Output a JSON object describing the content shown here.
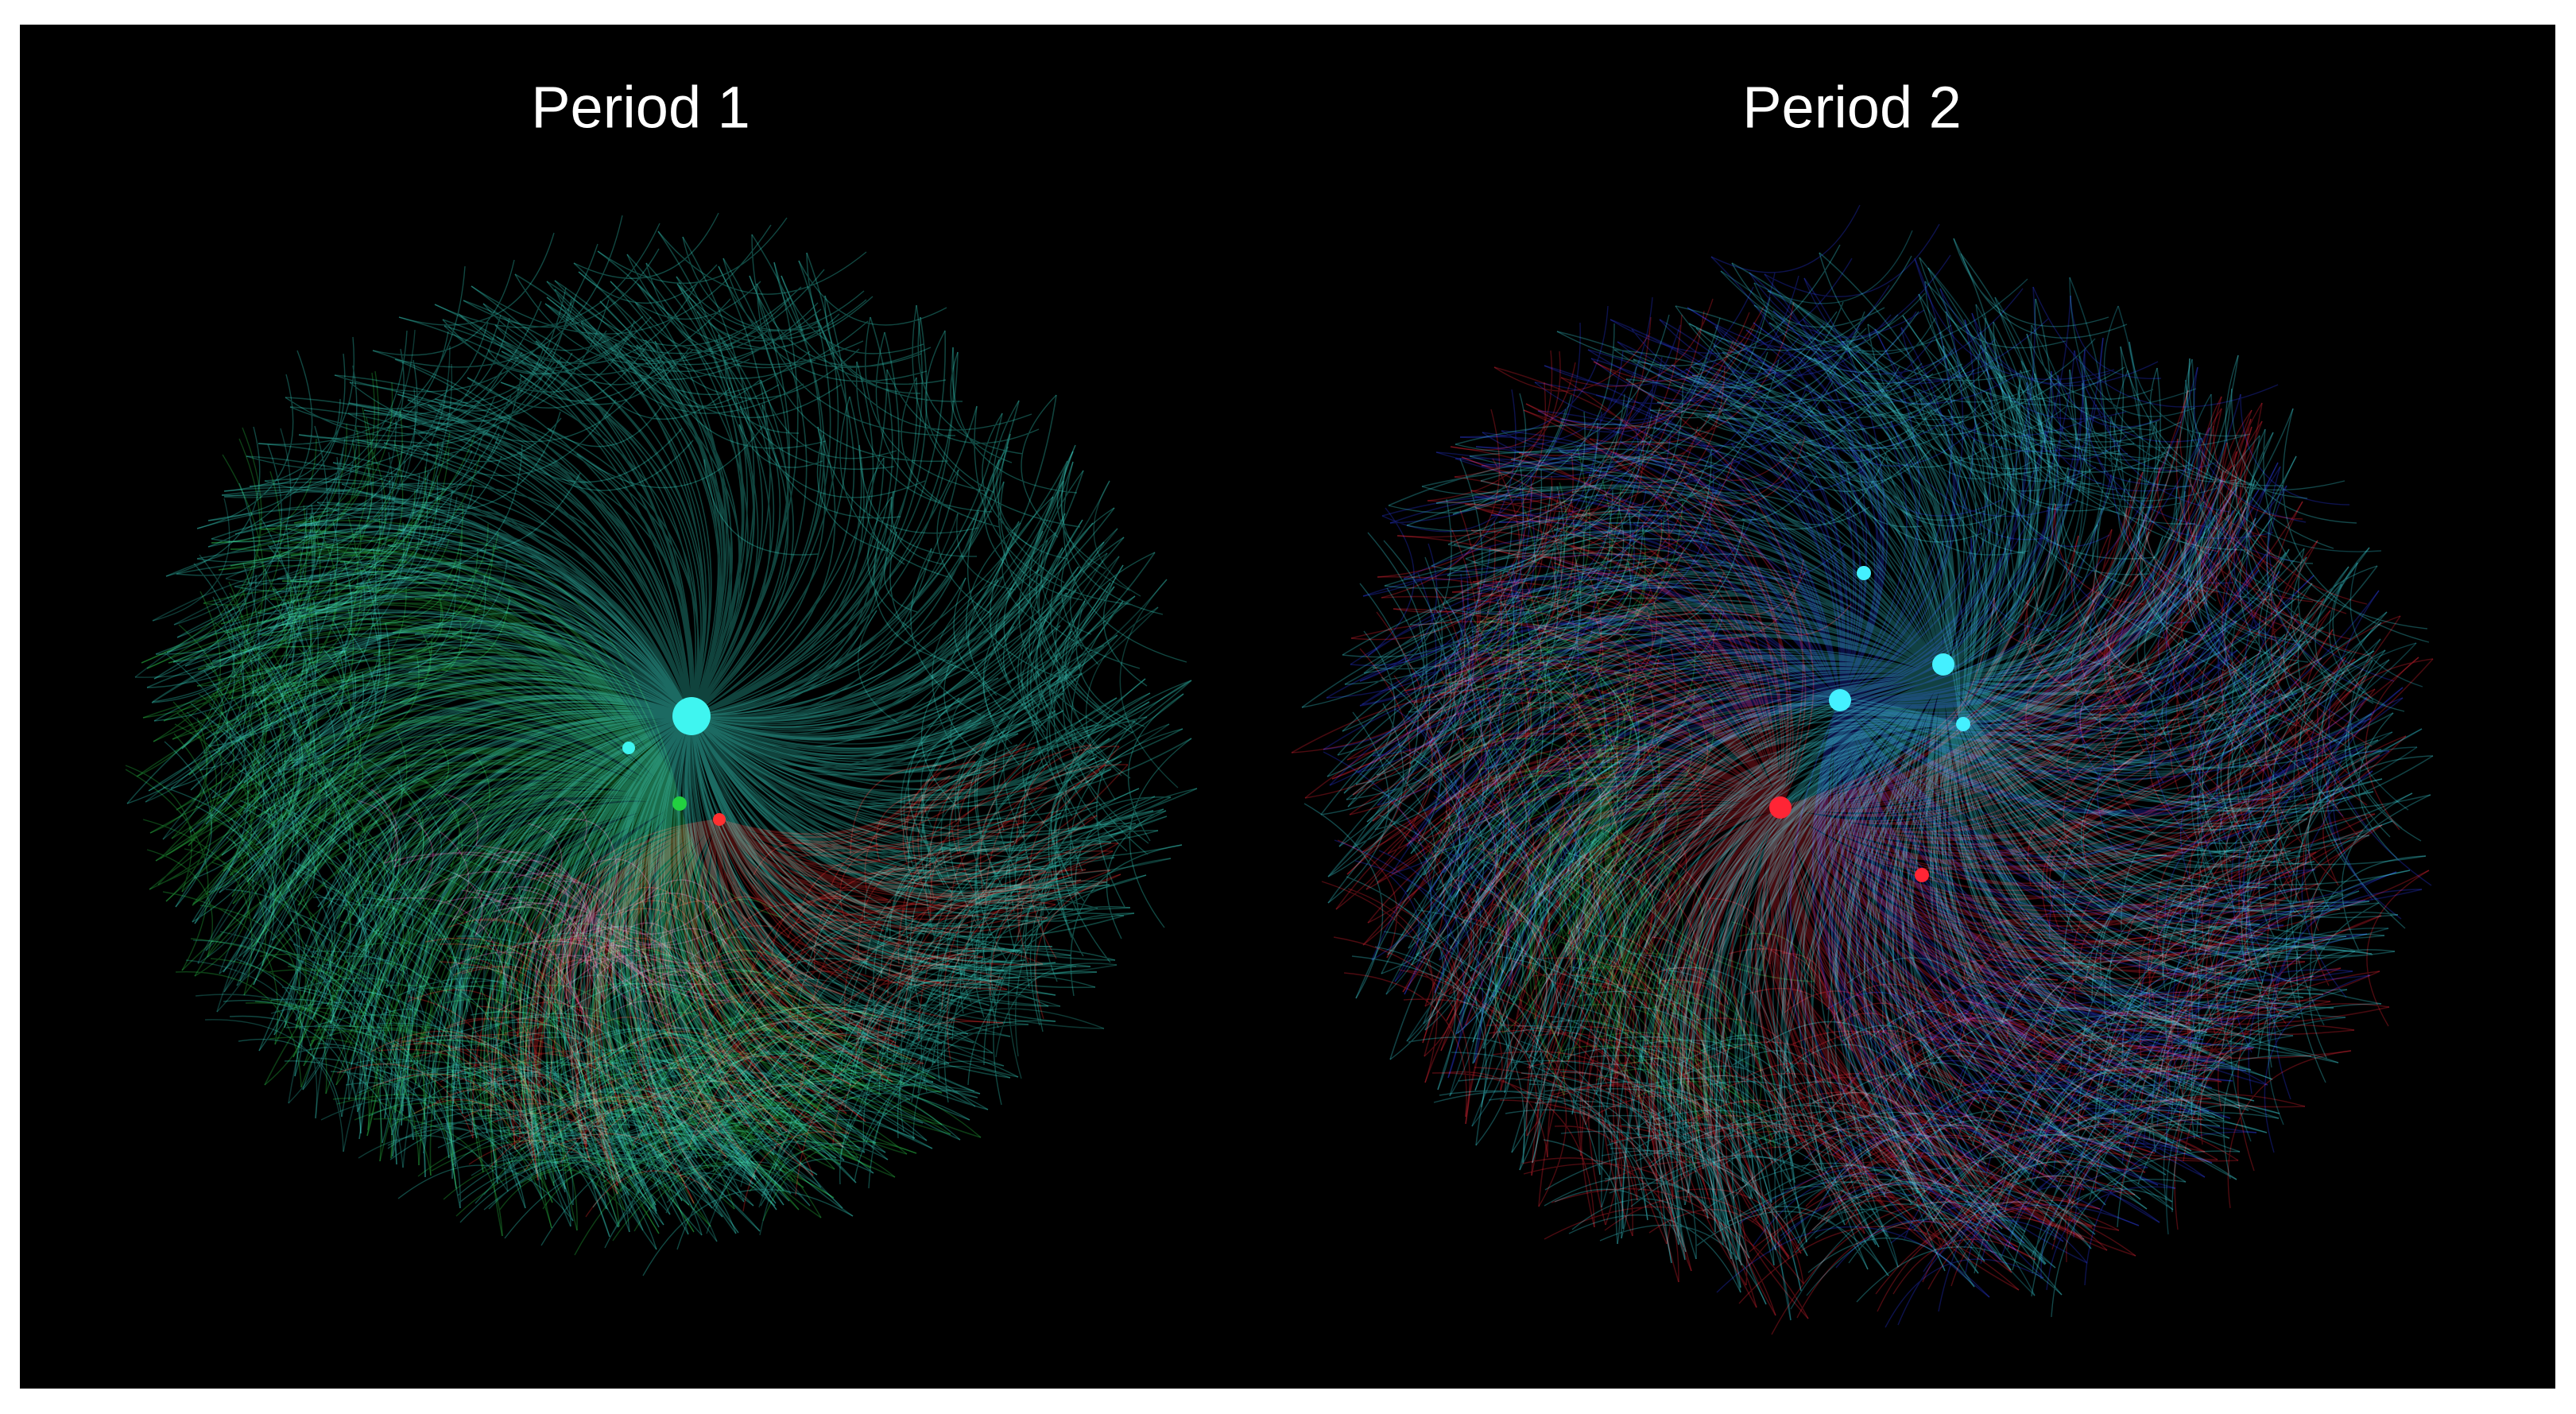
{
  "panels": [
    {
      "title": "Period 1"
    },
    {
      "title": "Period 2"
    }
  ]
}
